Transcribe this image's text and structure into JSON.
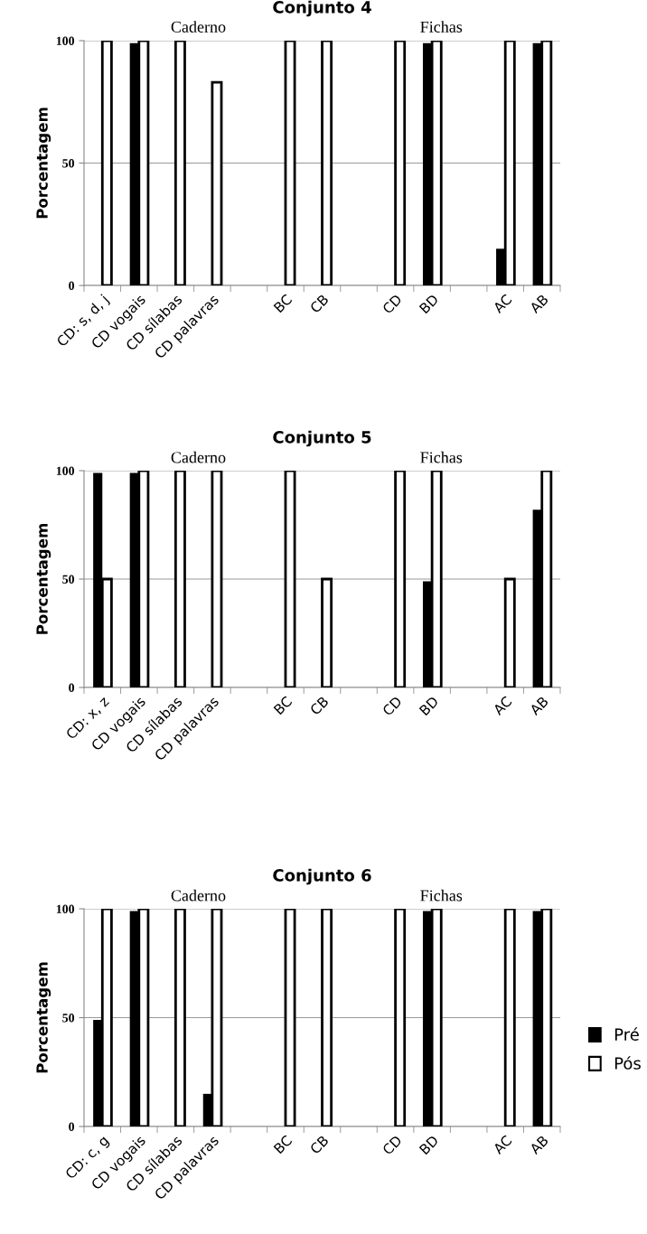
{
  "chart_data": [
    {
      "type": "bar",
      "title": "Conjunto 4",
      "ylabel": "Porcentagem",
      "annotations": [
        "Caderno",
        "Fichas"
      ],
      "categories": [
        "CD: s, d, j",
        "CD vogais",
        "CD sílabas",
        "CD palavras",
        null,
        "BC",
        "CB",
        null,
        "CD",
        "BD",
        null,
        "AC",
        "AB"
      ],
      "series": [
        {
          "color": "#000000",
          "values": [
            0,
            99,
            0,
            0,
            null,
            0,
            0,
            null,
            0,
            99,
            null,
            15,
            99
          ]
        },
        {
          "color": "#ffffff",
          "values": [
            100,
            100,
            100,
            83,
            null,
            100,
            100,
            null,
            100,
            100,
            null,
            100,
            100
          ]
        }
      ],
      "ylim": [
        0,
        100
      ],
      "yticks": [
        0,
        50,
        100
      ],
      "grid": "y",
      "legend": false
    },
    {
      "type": "bar",
      "title": "Conjunto 5",
      "ylabel": "Porcentagem",
      "annotations": [
        "Caderno",
        "Fichas"
      ],
      "categories": [
        "CD: x, z",
        "CD vogais",
        "CD sílabas",
        "CD palavras",
        null,
        "BC",
        "CB",
        null,
        "CD",
        "BD",
        null,
        "AC",
        "AB"
      ],
      "series": [
        {
          "color": "#000000",
          "values": [
            99,
            99,
            0,
            0,
            null,
            0,
            0,
            null,
            0,
            49,
            null,
            0,
            82
          ]
        },
        {
          "color": "#ffffff",
          "values": [
            50,
            100,
            100,
            100,
            null,
            100,
            50,
            null,
            100,
            100,
            null,
            50,
            100
          ]
        }
      ],
      "ylim": [
        0,
        100
      ],
      "yticks": [
        0,
        50,
        100
      ],
      "grid": "y",
      "legend": false
    },
    {
      "type": "bar",
      "title": "Conjunto 6",
      "ylabel": "Porcentagem",
      "annotations": [
        "Caderno",
        "Fichas"
      ],
      "categories": [
        "CD: c, g",
        "CD vogais",
        "CD sílabas",
        "CD palavras",
        null,
        "BC",
        "CB",
        null,
        "CD",
        "BD",
        null,
        "AC",
        "AB"
      ],
      "series": [
        {
          "name": "Pré",
          "color": "#000000",
          "values": [
            49,
            99,
            0,
            15,
            null,
            0,
            0,
            null,
            0,
            99,
            null,
            0,
            99
          ]
        },
        {
          "name": "Pós",
          "color": "#ffffff",
          "values": [
            100,
            100,
            100,
            100,
            null,
            100,
            100,
            null,
            100,
            100,
            null,
            100,
            100
          ]
        }
      ],
      "ylim": [
        0,
        100
      ],
      "yticks": [
        0,
        50,
        100
      ],
      "grid": "y",
      "legend": "right"
    }
  ]
}
